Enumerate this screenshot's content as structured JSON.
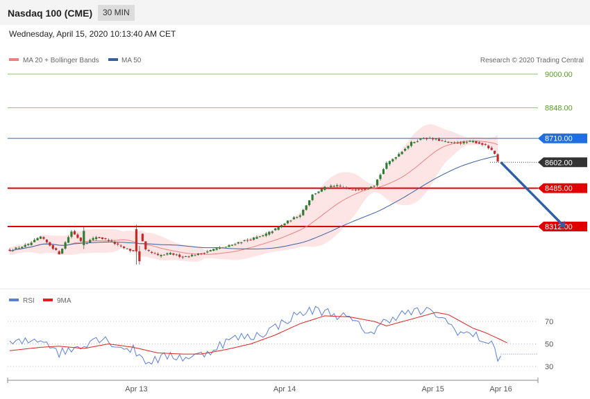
{
  "header": {
    "title": "Nasdaq 100 (CME)",
    "timeframe": "30 MIN",
    "timestamp": "Wednesday, April 15, 2020 10:13:40 AM CET"
  },
  "colors": {
    "bull": "#2e7d32",
    "bear": "#c62828",
    "ma20": "#f08080",
    "band_fill": "#fde0e0",
    "ma50": "#3a5f9e",
    "rsi": "#5b7fd6",
    "rsi_ma": "#e02020",
    "resistance_green": "#8cc06a",
    "level_blue": "#1f6fe0",
    "level_red": "#e00000",
    "arrow": "#2f5fa5",
    "last_price_bg": "#333333"
  },
  "legend": {
    "ma20_label": "MA 20 + Bollinger Bands",
    "ma50_label": "MA 50",
    "rsi_label": "RSI",
    "rsi_ma_label": "9MA"
  },
  "credit": "Research © 2020 Trading Central",
  "chart_data": [
    {
      "type": "candlestick",
      "y_range": [
        8180,
        9040
      ],
      "levels": [
        {
          "value": 9000,
          "label": "9000.00",
          "style": "green-line"
        },
        {
          "value": 8848,
          "label": "8848.00",
          "style": "green-line"
        },
        {
          "value": 8710,
          "label": "8710.00",
          "style": "blue-tag"
        },
        {
          "value": 8602,
          "label": "8602.00",
          "style": "last-price"
        },
        {
          "value": 8485,
          "label": "8485.00",
          "style": "red-tag"
        },
        {
          "value": 8312,
          "label": "8312.00",
          "style": "red-tag"
        }
      ],
      "x_ticks": [
        {
          "index": 41,
          "label": "Apr 13"
        },
        {
          "index": 89,
          "label": "Apr 14"
        },
        {
          "index": 137,
          "label": "Apr 15"
        },
        {
          "index": 159,
          "label": "Apr 16"
        }
      ],
      "projection": {
        "from": {
          "index": 159,
          "value": 8602
        },
        "to": {
          "index": 180,
          "value": 8312
        }
      },
      "anchors": [
        [
          0,
          8205
        ],
        [
          6,
          8230
        ],
        [
          10,
          8265
        ],
        [
          14,
          8215
        ],
        [
          16,
          8190
        ],
        [
          20,
          8290
        ],
        [
          24,
          8235
        ],
        [
          28,
          8265
        ],
        [
          32,
          8250
        ],
        [
          36,
          8220
        ],
        [
          40,
          8200
        ],
        [
          42,
          8280
        ],
        [
          44,
          8205
        ],
        [
          48,
          8180
        ],
        [
          52,
          8190
        ],
        [
          56,
          8175
        ],
        [
          62,
          8190
        ],
        [
          66,
          8210
        ],
        [
          70,
          8220
        ],
        [
          74,
          8240
        ],
        [
          78,
          8255
        ],
        [
          82,
          8270
        ],
        [
          86,
          8300
        ],
        [
          90,
          8335
        ],
        [
          94,
          8365
        ],
        [
          98,
          8455
        ],
        [
          102,
          8488
        ],
        [
          106,
          8495
        ],
        [
          110,
          8480
        ],
        [
          114,
          8480
        ],
        [
          118,
          8500
        ],
        [
          122,
          8595
        ],
        [
          126,
          8640
        ],
        [
          130,
          8690
        ],
        [
          134,
          8712
        ],
        [
          138,
          8705
        ],
        [
          142,
          8690
        ],
        [
          146,
          8690
        ],
        [
          150,
          8695
        ],
        [
          154,
          8680
        ],
        [
          157,
          8640
        ],
        [
          158,
          8602
        ]
      ],
      "big_candles": [
        {
          "index": 24,
          "open": 8228,
          "close": 8292,
          "high": 8310,
          "low": 8210
        },
        {
          "index": 41,
          "open": 8300,
          "close": 8200,
          "high": 8320,
          "low": 8140
        },
        {
          "index": 42,
          "open": 8200,
          "close": 8155,
          "high": 8225,
          "low": 8140
        }
      ]
    },
    {
      "type": "line",
      "y_range": [
        10,
        90
      ],
      "y_ticks": [
        70,
        50,
        30
      ],
      "series": [
        {
          "name": "RSI",
          "anchors": [
            [
              0,
              50
            ],
            [
              6,
              52
            ],
            [
              10,
              55
            ],
            [
              14,
              48
            ],
            [
              16,
              42
            ],
            [
              20,
              45
            ],
            [
              24,
              50
            ],
            [
              28,
              56
            ],
            [
              32,
              53
            ],
            [
              36,
              47
            ],
            [
              40,
              45
            ],
            [
              42,
              40
            ],
            [
              44,
              35
            ],
            [
              48,
              36
            ],
            [
              52,
              40
            ],
            [
              56,
              38
            ],
            [
              62,
              40
            ],
            [
              66,
              46
            ],
            [
              70,
              52
            ],
            [
              74,
              56
            ],
            [
              78,
              56
            ],
            [
              82,
              60
            ],
            [
              86,
              65
            ],
            [
              90,
              72
            ],
            [
              94,
              77
            ],
            [
              98,
              80
            ],
            [
              102,
              79
            ],
            [
              106,
              76
            ],
            [
              110,
              72
            ],
            [
              114,
              64
            ],
            [
              118,
              60
            ],
            [
              122,
              72
            ],
            [
              126,
              76
            ],
            [
              130,
              78
            ],
            [
              134,
              79
            ],
            [
              138,
              77
            ],
            [
              142,
              68
            ],
            [
              146,
              60
            ],
            [
              150,
              58
            ],
            [
              154,
              53
            ],
            [
              157,
              46
            ],
            [
              158,
              38
            ],
            [
              160,
              41
            ],
            [
              175,
              41
            ]
          ]
        },
        {
          "name": "9MA",
          "anchors": [
            [
              0,
              44
            ],
            [
              10,
              47
            ],
            [
              16,
              48
            ],
            [
              24,
              46
            ],
            [
              32,
              50
            ],
            [
              40,
              47
            ],
            [
              48,
              42
            ],
            [
              56,
              41
            ],
            [
              62,
              41
            ],
            [
              70,
              45
            ],
            [
              78,
              50
            ],
            [
              86,
              58
            ],
            [
              94,
              68
            ],
            [
              102,
              75
            ],
            [
              110,
              74
            ],
            [
              118,
              70
            ],
            [
              122,
              66
            ],
            [
              130,
              72
            ],
            [
              138,
              78
            ],
            [
              142,
              76
            ],
            [
              146,
              70
            ],
            [
              150,
              64
            ],
            [
              154,
              60
            ],
            [
              158,
              55
            ],
            [
              161,
              51
            ]
          ]
        }
      ]
    }
  ]
}
